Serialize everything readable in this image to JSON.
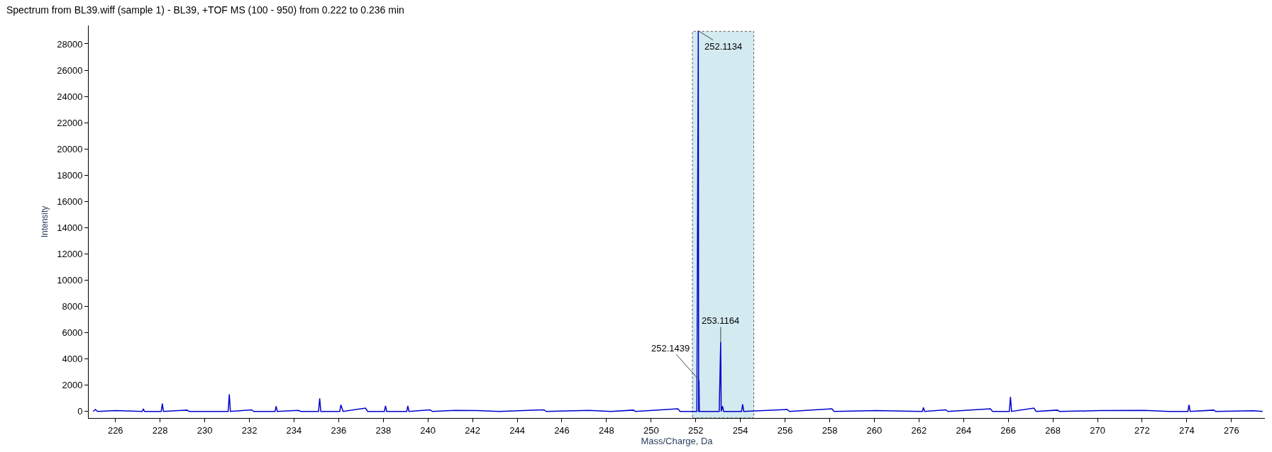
{
  "chart_data": {
    "type": "line",
    "title": "Spectrum from BL39.wiff (sample 1) - BL39, +TOF MS (100 - 950) from 0.222 to 0.236 min",
    "xlabel": "Mass/Charge, Da",
    "ylabel": "Intensity",
    "series": [
      {
        "color": "#0000cc",
        "x": [
          225.0,
          225.1,
          225.2,
          226.0,
          227.2,
          227.25,
          227.3,
          228.05,
          228.1,
          228.15,
          229.2,
          229.3,
          231.05,
          231.1,
          231.15,
          232.1,
          232.2,
          233.15,
          233.2,
          233.25,
          234.2,
          234.3,
          235.1,
          235.15,
          235.2,
          236.05,
          236.1,
          236.2,
          237.2,
          237.3,
          238.05,
          238.1,
          238.15,
          239.05,
          239.1,
          239.15,
          240.1,
          240.2,
          241.2,
          242.2,
          243.2,
          245.2,
          245.3,
          247.2,
          248.2,
          249.2,
          249.3,
          251.2,
          251.3,
          252.05,
          252.1134,
          252.13,
          252.14,
          252.1439,
          252.16,
          253.05,
          253.1164,
          253.14,
          253.2,
          253.25,
          254.05,
          254.1,
          254.15,
          256.1,
          256.2,
          258.1,
          258.2,
          260.1,
          262.15,
          262.2,
          262.25,
          263.2,
          263.3,
          265.2,
          265.3,
          266.05,
          266.1,
          266.15,
          267.15,
          267.25,
          268.2,
          268.3,
          270.1,
          272.1,
          273.2,
          274.05,
          274.1,
          274.15,
          275.2,
          275.3,
          277.0,
          277.4
        ],
        "values": [
          0,
          150,
          0,
          60,
          0,
          200,
          0,
          0,
          600,
          0,
          100,
          0,
          0,
          1300,
          0,
          120,
          0,
          0,
          400,
          0,
          80,
          0,
          0,
          1000,
          0,
          0,
          500,
          0,
          250,
          0,
          0,
          420,
          0,
          0,
          420,
          0,
          120,
          0,
          80,
          60,
          0,
          120,
          0,
          80,
          0,
          100,
          0,
          200,
          0,
          0,
          29000,
          0,
          0,
          2400,
          0,
          0,
          5300,
          0,
          400,
          0,
          0,
          550,
          0,
          150,
          0,
          200,
          0,
          60,
          0,
          300,
          0,
          120,
          0,
          200,
          0,
          0,
          1100,
          0,
          250,
          0,
          100,
          0,
          60,
          80,
          0,
          0,
          500,
          0,
          100,
          0,
          50,
          0
        ]
      }
    ],
    "xlim": [
      224.8,
      277.5
    ],
    "ylim": [
      -500,
      29400
    ],
    "xticks": [
      226,
      228,
      230,
      232,
      234,
      236,
      238,
      240,
      242,
      244,
      246,
      248,
      250,
      252,
      254,
      256,
      258,
      260,
      262,
      264,
      266,
      268,
      270,
      272,
      274,
      276
    ],
    "yticks": [
      0,
      2000,
      4000,
      6000,
      8000,
      10000,
      12000,
      14000,
      16000,
      18000,
      20000,
      22000,
      24000,
      26000,
      28000
    ],
    "bands": [
      {
        "axis": "x",
        "from": 251.85,
        "to": 254.6,
        "color": "#d3eaf0"
      }
    ],
    "annotations": [
      {
        "text": "252.1134",
        "x": 252.1134,
        "y": 29000
      },
      {
        "text": "252.1439",
        "x": 252.1439,
        "y": 2400
      },
      {
        "text": "253.1164",
        "x": 253.1164,
        "y": 5300
      }
    ],
    "grid": false,
    "marker": "none",
    "line_style": "solid"
  }
}
